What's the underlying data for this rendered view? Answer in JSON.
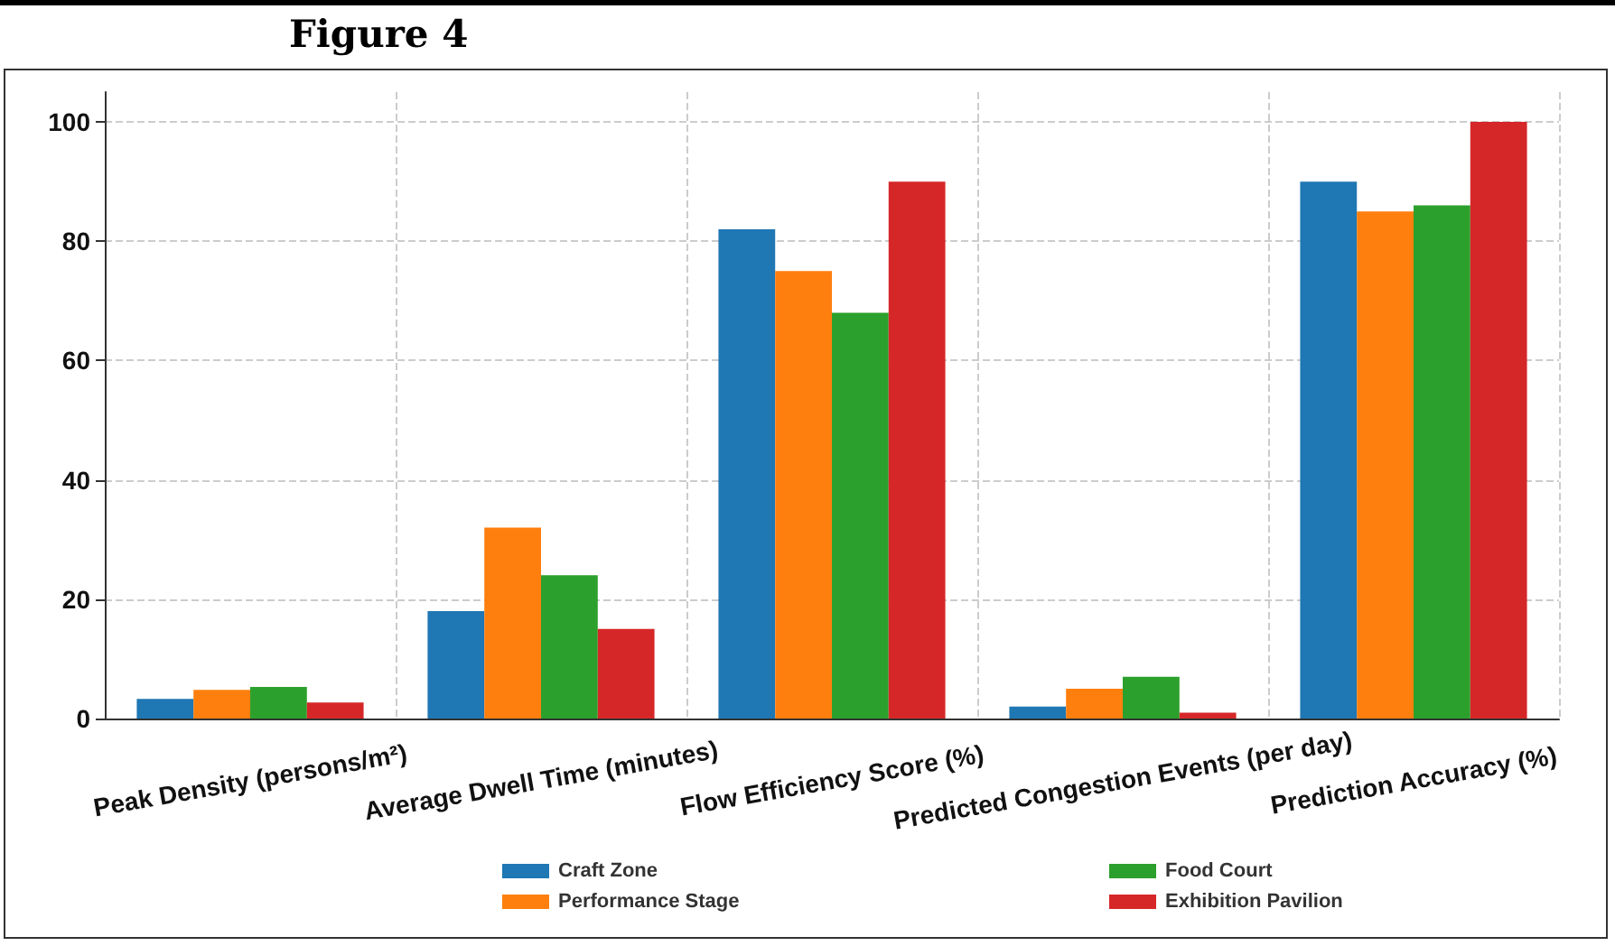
{
  "chart_data": {
    "type": "bar",
    "title": "Figure 4",
    "categories": [
      "Peak Density (persons/m²)",
      "Average Dwell Time (minutes)",
      "Flow Efficiency Score (%)",
      "Predicted Congestion Events (per day)",
      "Prediction Accuracy (%)"
    ],
    "series": [
      {
        "name": "Craft Zone",
        "color": "#1f77b4",
        "values": [
          3.3,
          18,
          82,
          2,
          90
        ]
      },
      {
        "name": "Performance Stage",
        "color": "#ff7f0e",
        "values": [
          4.8,
          32,
          75,
          5,
          85
        ]
      },
      {
        "name": "Food Court",
        "color": "#2ca02c",
        "values": [
          5.3,
          24,
          68,
          7,
          86
        ]
      },
      {
        "name": "Exhibition Pavilion",
        "color": "#d62728",
        "values": [
          2.7,
          15,
          90,
          1,
          100
        ]
      }
    ],
    "ylim": [
      0,
      105
    ],
    "yticks": [
      0,
      20,
      40,
      60,
      80,
      100
    ],
    "grid": true,
    "legend": "bottom"
  }
}
